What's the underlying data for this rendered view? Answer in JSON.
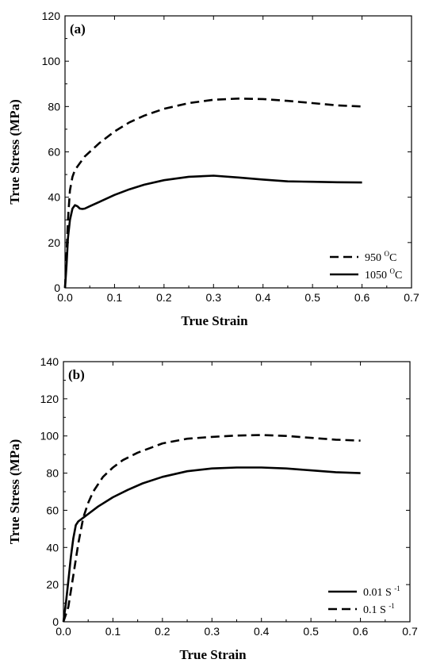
{
  "chart_data": [
    {
      "type": "line",
      "panel_label": "(a)",
      "xlabel": "True Strain",
      "ylabel": "True Stress (MPa)",
      "xlim": [
        0.0,
        0.7
      ],
      "ylim": [
        0,
        120
      ],
      "xticks": [
        "0.0",
        "0.1",
        "0.2",
        "0.3",
        "0.4",
        "0.5",
        "0.6",
        "0.7"
      ],
      "yticks": [
        "0",
        "20",
        "40",
        "60",
        "80",
        "100",
        "120"
      ],
      "grid": false,
      "legend_position": "bottom-right",
      "series": [
        {
          "name": "950",
          "name_sup": "O",
          "name_suffix": "C",
          "style": "dashed",
          "x": [
            0.0,
            0.003,
            0.006,
            0.01,
            0.015,
            0.02,
            0.03,
            0.04,
            0.05,
            0.07,
            0.1,
            0.13,
            0.16,
            0.2,
            0.25,
            0.3,
            0.35,
            0.4,
            0.45,
            0.5,
            0.55,
            0.6
          ],
          "y": [
            0,
            15,
            30,
            43,
            49,
            52,
            55,
            58,
            60,
            64,
            69,
            73,
            76,
            79,
            81.5,
            83,
            83.5,
            83.3,
            82.5,
            81.5,
            80.5,
            80
          ]
        },
        {
          "name": "1050",
          "name_sup": "O",
          "name_suffix": "C",
          "style": "solid",
          "x": [
            0.0,
            0.003,
            0.006,
            0.01,
            0.015,
            0.02,
            0.025,
            0.03,
            0.035,
            0.04,
            0.05,
            0.07,
            0.1,
            0.13,
            0.16,
            0.2,
            0.25,
            0.3,
            0.35,
            0.4,
            0.45,
            0.5,
            0.55,
            0.6
          ],
          "y": [
            0,
            10,
            22,
            30,
            35,
            36.5,
            36,
            35,
            34.8,
            35,
            36,
            38,
            41,
            43.5,
            45.5,
            47.5,
            49,
            49.5,
            48.7,
            47.8,
            47,
            46.8,
            46.6,
            46.5
          ]
        }
      ]
    },
    {
      "type": "line",
      "panel_label": "(b)",
      "xlabel": "True Strain",
      "ylabel": "True Stress (MPa)",
      "xlim": [
        0.0,
        0.7
      ],
      "ylim": [
        0,
        140
      ],
      "xticks": [
        "0.0",
        "0.1",
        "0.2",
        "0.3",
        "0.4",
        "0.5",
        "0.6",
        "0.7"
      ],
      "yticks": [
        "0",
        "20",
        "40",
        "60",
        "80",
        "100",
        "120",
        "140"
      ],
      "grid": false,
      "legend_position": "bottom-right",
      "series": [
        {
          "name": "0.01 S",
          "name_sup": "-1",
          "name_suffix": "",
          "style": "solid",
          "x": [
            0.0,
            0.005,
            0.01,
            0.015,
            0.02,
            0.025,
            0.03,
            0.04,
            0.05,
            0.07,
            0.1,
            0.13,
            0.16,
            0.2,
            0.25,
            0.3,
            0.35,
            0.4,
            0.45,
            0.5,
            0.55,
            0.6
          ],
          "y": [
            0,
            10,
            22,
            35,
            45,
            52,
            54,
            56,
            58,
            62,
            67,
            71,
            74.5,
            78,
            81,
            82.5,
            83,
            83,
            82.5,
            81.5,
            80.5,
            80
          ]
        },
        {
          "name": "0.1 S",
          "name_sup": "-1",
          "name_suffix": "",
          "style": "dashed",
          "x": [
            0.0,
            0.01,
            0.02,
            0.03,
            0.04,
            0.05,
            0.06,
            0.07,
            0.08,
            0.1,
            0.12,
            0.15,
            0.18,
            0.2,
            0.25,
            0.3,
            0.35,
            0.4,
            0.45,
            0.5,
            0.55,
            0.6
          ],
          "y": [
            0,
            8,
            25,
            42,
            56,
            64,
            70,
            74,
            78,
            83,
            87,
            91,
            94,
            96,
            98.5,
            99.5,
            100.2,
            100.5,
            100,
            99,
            98,
            97.5
          ]
        }
      ]
    }
  ]
}
